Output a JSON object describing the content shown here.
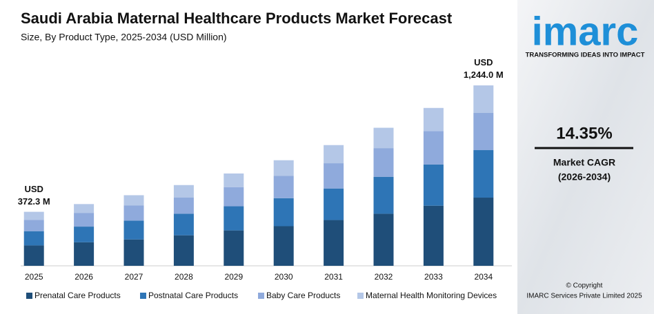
{
  "chart_data": {
    "type": "stacked_bar",
    "title": "Saudi Arabia Maternal Healthcare Products Market Forecast",
    "subtitle": "Size, By Product Type, 2025-2034 (USD Million)",
    "categories": [
      "2025",
      "2026",
      "2027",
      "2028",
      "2029",
      "2030",
      "2031",
      "2032",
      "2033",
      "2034"
    ],
    "series": [
      {
        "name": "Prenatal Care Products",
        "color": "#1f4e79",
        "values": [
          140.5,
          162.2,
          181.7,
          210.3,
          243.9,
          273.0,
          315.5,
          358.9,
          414.4,
          470.0
        ]
      },
      {
        "name": "Postnatal Care Products",
        "color": "#2e75b6",
        "values": [
          98.3,
          108.1,
          129.8,
          148.5,
          166.6,
          193.3,
          217.6,
          254.9,
          284.6,
          327.6
        ]
      },
      {
        "name": "Baby Care Products",
        "color": "#8faadc",
        "values": [
          77.2,
          94.6,
          103.9,
          111.3,
          130.9,
          153.5,
          174.1,
          197.6,
          229.7,
          256.4
        ]
      },
      {
        "name": "Maternal Health Monitoring Devices",
        "color": "#b4c7e7",
        "values": [
          56.3,
          60.8,
          71.4,
          86.6,
          95.2,
          108.1,
          125.1,
          140.4,
          159.8,
          190.0
        ]
      }
    ],
    "annotations": [
      {
        "value": 372.3,
        "label": "USD\n372.3 M"
      },
      {
        "value": 1244.0,
        "label": "USD\n1,244.0 M"
      }
    ]
  },
  "sidebar": {
    "logo": "imarc",
    "tagline": "TRANSFORMING IDEAS INTO IMPACT",
    "cagr": "14.35%",
    "cagr_label": "Market CAGR",
    "cagr_period": "(2026-2034)",
    "copyright": "© Copyright",
    "company": "IMARC Services Private Limited 2025"
  }
}
